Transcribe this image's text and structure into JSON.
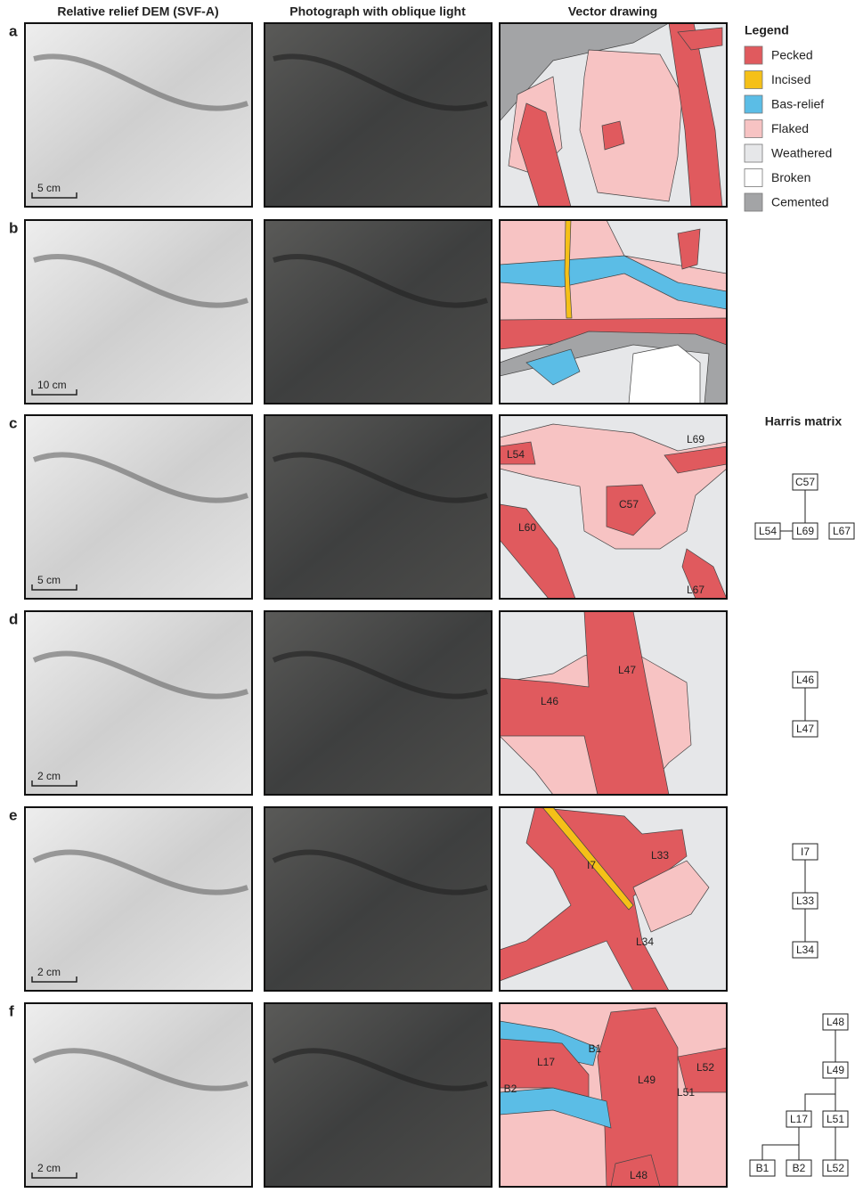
{
  "columns": [
    "Relative relief DEM (SVF-A)",
    "Photograph with oblique light",
    "Vector drawing"
  ],
  "rows": [
    {
      "letter": "a",
      "scale_bar": "5 cm",
      "drawing_labels": []
    },
    {
      "letter": "b",
      "scale_bar": "10 cm",
      "drawing_labels": []
    },
    {
      "letter": "c",
      "scale_bar": "5 cm",
      "drawing_labels": [
        "L54",
        "L69",
        "C57",
        "L60",
        "L67"
      ]
    },
    {
      "letter": "d",
      "scale_bar": "2 cm",
      "drawing_labels": [
        "L47",
        "L46"
      ]
    },
    {
      "letter": "e",
      "scale_bar": "2 cm",
      "drawing_labels": [
        "I7",
        "L33",
        "L34"
      ]
    },
    {
      "letter": "f",
      "scale_bar": "2 cm",
      "drawing_labels": [
        "B1",
        "L17",
        "L49",
        "L52",
        "L51",
        "B2",
        "L48"
      ]
    }
  ],
  "legend": {
    "title": "Legend",
    "items": [
      {
        "label": "Pecked",
        "color": "#e05a5e"
      },
      {
        "label": "Incised",
        "color": "#f5c018"
      },
      {
        "label": "Bas-relief",
        "color": "#5bbde6"
      },
      {
        "label": "Flaked",
        "color": "#f7c3c3"
      },
      {
        "label": "Weathered",
        "color": "#e6e7e9"
      },
      {
        "label": "Broken",
        "color": "#ffffff"
      },
      {
        "label": "Cemented",
        "color": "#a3a4a6"
      }
    ]
  },
  "harris": {
    "title": "Harris matrix",
    "matrices": [
      {
        "row": "c",
        "nodes": [
          "C57",
          "L54",
          "L69",
          "L67"
        ]
      },
      {
        "row": "d",
        "nodes": [
          "L46",
          "L47"
        ]
      },
      {
        "row": "e",
        "nodes": [
          "I7",
          "L33",
          "L34"
        ]
      },
      {
        "row": "f",
        "nodes": [
          "L48",
          "L49",
          "L17",
          "L51",
          "B1",
          "B2",
          "L52"
        ]
      }
    ]
  }
}
